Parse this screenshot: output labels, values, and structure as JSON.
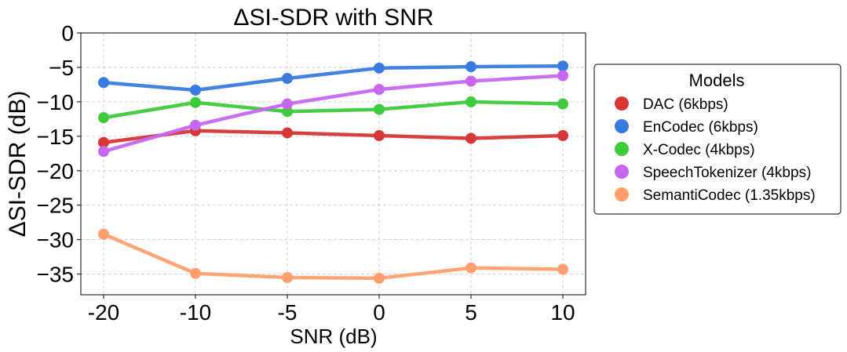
{
  "chart_data": {
    "type": "line",
    "title": "ΔSI-SDR with SNR",
    "xlabel": "SNR (dB)",
    "ylabel": "ΔSI-SDR (dB)",
    "x": [
      -20,
      -10,
      -5,
      0,
      5,
      10
    ],
    "x_tick_labels": [
      "-20",
      "-10",
      "-5",
      "0",
      "5",
      "10"
    ],
    "y_ticks": [
      0,
      -5,
      -10,
      -15,
      -20,
      -25,
      -30,
      -35
    ],
    "y_tick_labels": [
      "0",
      "−5",
      "−10",
      "−15",
      "−20",
      "−25",
      "−30",
      "−35"
    ],
    "ylim": [
      -38,
      0
    ],
    "grid": true,
    "legend": {
      "title": "Models",
      "placement": "right-outside"
    },
    "series": [
      {
        "name": "DAC (6kbps)",
        "color": "#d63636",
        "values": [
          -15.9,
          -14.2,
          -14.5,
          -14.9,
          -15.3,
          -14.9
        ]
      },
      {
        "name": "EnCodec (6kbps)",
        "color": "#3a7be0",
        "values": [
          -7.2,
          -8.3,
          -6.6,
          -5.1,
          -4.9,
          -4.8
        ]
      },
      {
        "name": "X-Codec (4kbps)",
        "color": "#3ccc3c",
        "values": [
          -12.3,
          -10.1,
          -11.4,
          -11.1,
          -10.0,
          -10.3
        ]
      },
      {
        "name": "SpeechTokenizer (4kbps)",
        "color": "#c767f0",
        "values": [
          -17.2,
          -13.4,
          -10.3,
          -8.2,
          -7.0,
          -6.2
        ]
      },
      {
        "name": "SemantiCodec (1.35kbps)",
        "color": "#ff9f6e",
        "values": [
          -29.2,
          -34.9,
          -35.5,
          -35.6,
          -34.1,
          -34.3
        ]
      }
    ]
  }
}
